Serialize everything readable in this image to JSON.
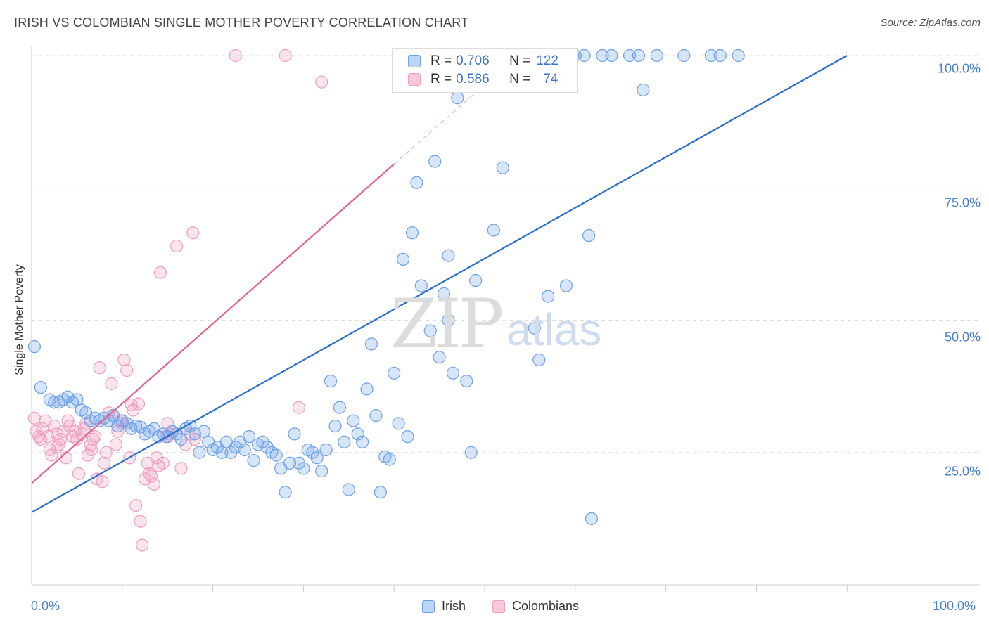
{
  "title": "IRISH VS COLOMBIAN SINGLE MOTHER POVERTY CORRELATION CHART",
  "source": "Source: ZipAtlas.com",
  "colors": {
    "irish": "#6fa1e8",
    "irish_line": "#2b6fcc",
    "colombians": "#f0a0bd",
    "colombians_line": "#e5648c"
  },
  "legend": {
    "irish": {
      "r_label": "R = ",
      "r_value": "0.706",
      "n_label": "N = ",
      "n_value": "122"
    },
    "colombians": {
      "r_label": "R = ",
      "r_value": "0.586",
      "n_label": "N = ",
      "n_value": "74"
    }
  },
  "bottom_legend": {
    "irish": "Irish",
    "colombians": "Colombians"
  },
  "watermark": {
    "zip": "ZIP",
    "atlas": "atlas"
  },
  "chart_data": {
    "type": "scatter",
    "title": "IRISH VS COLOMBIAN SINGLE MOTHER POVERTY CORRELATION CHART",
    "xlabel": "",
    "ylabel": "Single Mother Poverty",
    "xlim": [
      0,
      100
    ],
    "ylim": [
      0,
      102
    ],
    "x_tick_labels": [
      "0.0%",
      "100.0%"
    ],
    "y_ticks": [
      25,
      50,
      75,
      100
    ],
    "y_tick_labels": [
      "25.0%",
      "50.0%",
      "75.0%",
      "100.0%"
    ],
    "grid": true,
    "series": [
      {
        "name": "Irish",
        "trend": {
          "x0": 0,
          "y0": 13.7,
          "x1": 90,
          "y1": 100
        },
        "points": [
          [
            0.3,
            45
          ],
          [
            1,
            37.3
          ],
          [
            2,
            35
          ],
          [
            2.5,
            34.5
          ],
          [
            3,
            34.5
          ],
          [
            3.5,
            35
          ],
          [
            4,
            35.5
          ],
          [
            4.5,
            34.5
          ],
          [
            5,
            35
          ],
          [
            5.5,
            33
          ],
          [
            6,
            32.5
          ],
          [
            6.5,
            31
          ],
          [
            7,
            31.5
          ],
          [
            7.5,
            31
          ],
          [
            8,
            31.5
          ],
          [
            8.5,
            31
          ],
          [
            9,
            32
          ],
          [
            9.5,
            30
          ],
          [
            10,
            31
          ],
          [
            10.5,
            30.5
          ],
          [
            11,
            29.5
          ],
          [
            11.5,
            30
          ],
          [
            12,
            29.8
          ],
          [
            12.5,
            28.5
          ],
          [
            13,
            29
          ],
          [
            13.5,
            29.5
          ],
          [
            14,
            28
          ],
          [
            14.5,
            28.5
          ],
          [
            15,
            28
          ],
          [
            15.5,
            29
          ],
          [
            16,
            28.5
          ],
          [
            16.5,
            27.5
          ],
          [
            17,
            29.5
          ],
          [
            17.5,
            30
          ],
          [
            18,
            28.5
          ],
          [
            18.5,
            25
          ],
          [
            19,
            29
          ],
          [
            19.5,
            27
          ],
          [
            20,
            25.5
          ],
          [
            20.5,
            26
          ],
          [
            21,
            25
          ],
          [
            21.5,
            27
          ],
          [
            22,
            25
          ],
          [
            22.5,
            26
          ],
          [
            23,
            27
          ],
          [
            23.5,
            25.5
          ],
          [
            24,
            28
          ],
          [
            24.5,
            23.5
          ],
          [
            25,
            26.5
          ],
          [
            25.5,
            27
          ],
          [
            26,
            26
          ],
          [
            26.5,
            25
          ],
          [
            27,
            24.5
          ],
          [
            27.5,
            22
          ],
          [
            28,
            17.5
          ],
          [
            28.5,
            23
          ],
          [
            29,
            28.5
          ],
          [
            29.5,
            23
          ],
          [
            30,
            22
          ],
          [
            30.5,
            25.5
          ],
          [
            31,
            25
          ],
          [
            31.5,
            24
          ],
          [
            32,
            21.5
          ],
          [
            32.5,
            25.5
          ],
          [
            33,
            38.5
          ],
          [
            33.5,
            30
          ],
          [
            34,
            33.5
          ],
          [
            34.5,
            27
          ],
          [
            35,
            18
          ],
          [
            35.5,
            31
          ],
          [
            36,
            28.5
          ],
          [
            36.5,
            27
          ],
          [
            37,
            37
          ],
          [
            37.5,
            45.5
          ],
          [
            38,
            32
          ],
          [
            38.5,
            17.5
          ],
          [
            39,
            24.2
          ],
          [
            39.5,
            23.7
          ],
          [
            40,
            40
          ],
          [
            40.5,
            30.5
          ],
          [
            41,
            61.5
          ],
          [
            41.5,
            28
          ],
          [
            42,
            66.5
          ],
          [
            43,
            56.5
          ],
          [
            44,
            48
          ],
          [
            45,
            43
          ],
          [
            45.5,
            55
          ],
          [
            46,
            62.2
          ],
          [
            46.5,
            40
          ],
          [
            47,
            92
          ],
          [
            48,
            38.5
          ],
          [
            48.5,
            25
          ],
          [
            49,
            57.5
          ],
          [
            50,
            100
          ],
          [
            51,
            67
          ],
          [
            52,
            78.8
          ],
          [
            53,
            100
          ],
          [
            54,
            100
          ],
          [
            55,
            100
          ],
          [
            55.5,
            48.5
          ],
          [
            56,
            42.5
          ],
          [
            57,
            54.5
          ],
          [
            58,
            100
          ],
          [
            59,
            56.5
          ],
          [
            60,
            100
          ],
          [
            61,
            100
          ],
          [
            61.5,
            66
          ],
          [
            61.8,
            12.5
          ],
          [
            63,
            100
          ],
          [
            64,
            100
          ],
          [
            66,
            100
          ],
          [
            67,
            100
          ],
          [
            67.5,
            93.5
          ],
          [
            69,
            100
          ],
          [
            72,
            100
          ],
          [
            75,
            100
          ],
          [
            76,
            100
          ],
          [
            78,
            100
          ],
          [
            42.5,
            76
          ],
          [
            44.5,
            80
          ],
          [
            46,
            50
          ],
          [
            52.5,
            100
          ],
          [
            56.5,
            100
          ],
          [
            59.5,
            100
          ]
        ]
      },
      {
        "name": "Colombians",
        "trend": {
          "x0": 0,
          "y0": 19.2,
          "x1": 40,
          "y1": 79.5,
          "dashed_to_x": 50,
          "dashed_to_y": 94.5
        },
        "points": [
          [
            0.3,
            31.5
          ],
          [
            0.5,
            29
          ],
          [
            0.8,
            28
          ],
          [
            1,
            27.5
          ],
          [
            1.2,
            29.5
          ],
          [
            1.5,
            31
          ],
          [
            1.8,
            28
          ],
          [
            2,
            25.5
          ],
          [
            2.2,
            24.5
          ],
          [
            2.5,
            30
          ],
          [
            2.8,
            26
          ],
          [
            3,
            26.5
          ],
          [
            3.2,
            27.5
          ],
          [
            3.5,
            29
          ],
          [
            3.8,
            24
          ],
          [
            4,
            31
          ],
          [
            4.2,
            30
          ],
          [
            4.5,
            28
          ],
          [
            4.8,
            29
          ],
          [
            5,
            27.5
          ],
          [
            5.2,
            21
          ],
          [
            5.5,
            28.5
          ],
          [
            5.8,
            29.5
          ],
          [
            6,
            30.5
          ],
          [
            6.2,
            24.5
          ],
          [
            6.5,
            26.5
          ],
          [
            6.8,
            27.5
          ],
          [
            7,
            28
          ],
          [
            7.2,
            20
          ],
          [
            7.5,
            41
          ],
          [
            7.8,
            19.5
          ],
          [
            8,
            23
          ],
          [
            8.2,
            25
          ],
          [
            8.5,
            32.5
          ],
          [
            8.8,
            38
          ],
          [
            9,
            32
          ],
          [
            9.3,
            26.5
          ],
          [
            9.5,
            29
          ],
          [
            9.8,
            31
          ],
          [
            10,
            30.5
          ],
          [
            10.2,
            42.5
          ],
          [
            10.5,
            40.5
          ],
          [
            10.8,
            24
          ],
          [
            11,
            34
          ],
          [
            11.2,
            33
          ],
          [
            11.5,
            15
          ],
          [
            12,
            12
          ],
          [
            12.2,
            7.5
          ],
          [
            12.5,
            20
          ],
          [
            12.8,
            23
          ],
          [
            13,
            21
          ],
          [
            13.2,
            20.5
          ],
          [
            13.5,
            19
          ],
          [
            13.8,
            24
          ],
          [
            14,
            22.5
          ],
          [
            14.2,
            59
          ],
          [
            14.5,
            23
          ],
          [
            14.8,
            28
          ],
          [
            15,
            30.5
          ],
          [
            15.2,
            28.5
          ],
          [
            15.5,
            29
          ],
          [
            16,
            64
          ],
          [
            16.5,
            22
          ],
          [
            17,
            26.5
          ],
          [
            17.5,
            28.5
          ],
          [
            17.8,
            66.5
          ],
          [
            18,
            27.5
          ],
          [
            22.5,
            100
          ],
          [
            28,
            100
          ],
          [
            32,
            95
          ],
          [
            29.5,
            33.5
          ],
          [
            11.8,
            34.2
          ],
          [
            2.8,
            28.5
          ],
          [
            6.6,
            25.5
          ]
        ]
      }
    ]
  }
}
